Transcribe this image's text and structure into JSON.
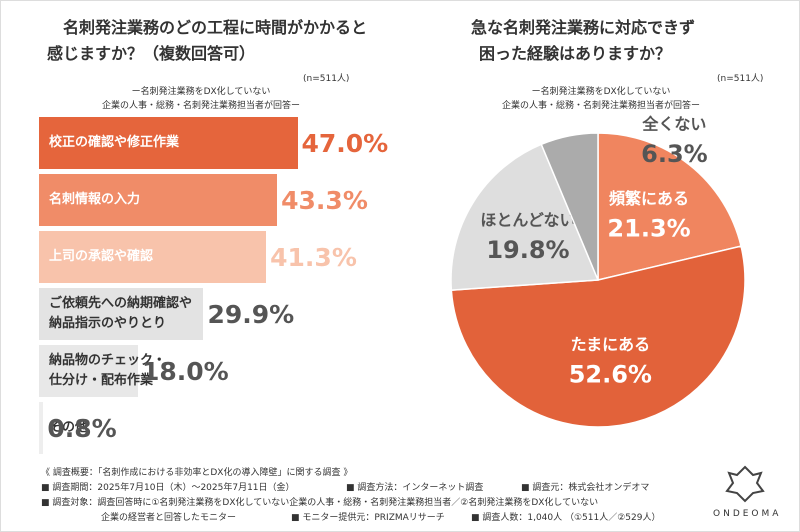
{
  "chart_data": [
    {
      "type": "bar",
      "title_lines": [
        "名刺発注業務のどの工程に時間がかかると",
        "感じますか？（複数回答可）"
      ],
      "note": "(n=511人)",
      "subtitle_lines": [
        "ー名刺発注業務をDX化していない",
        "企業の人事・総務・名刺発注業務担当者が回答ー"
      ],
      "categories": [
        "校正の確認や修正作業",
        "名刺情報の入力",
        "上司の承認や確認",
        "ご依頼先への納期確認や\n納品指示のやりとり",
        "納品物のチェック・\n仕分け・配布作業",
        "その他"
      ],
      "values": [
        47.0,
        43.3,
        41.3,
        29.9,
        18.0,
        0.8
      ],
      "value_labels": [
        "47.0%",
        "43.3%",
        "41.3%",
        "29.9%",
        "18.0%",
        "0.8%"
      ],
      "colors": [
        "#e5653c",
        "#f08c68",
        "#f8c3ab",
        "#e3e3e3",
        "#e8e8e8",
        "#eeeeee"
      ],
      "category_colors": [
        "#ffffff",
        "#ffffff",
        "#ffffff",
        "#333333",
        "#333333",
        "#333333"
      ],
      "value_label_colors": [
        "#e5653c",
        "#f08c68",
        "#f8c3ab",
        "#555555",
        "#555555",
        "#555555"
      ]
    },
    {
      "type": "pie",
      "title_lines": [
        "急な名刺発注業務に対応できず",
        "困った経験はありますか？"
      ],
      "note": "(n=511人)",
      "subtitle_lines": [
        "ー名刺発注業務をDX化していない",
        "企業の人事・総務・名刺発注業務担当者が回答ー"
      ],
      "categories": [
        "頻繁にある",
        "たまにある",
        "ほとんどない",
        "全くない"
      ],
      "values": [
        21.3,
        52.6,
        19.8,
        6.3
      ],
      "value_labels": [
        "21.3%",
        "52.6%",
        "19.8%",
        "6.3%"
      ],
      "colors": [
        "#f0855f",
        "#e2623a",
        "#dedede",
        "#ababab"
      ],
      "label_colors": [
        "#ffffff",
        "#ffffff",
        "#555555",
        "#555555"
      ]
    }
  ],
  "footer": {
    "heading": "《 調査概要：「名刺作成における非効率とDX化の導入障壁」に関する調査 》",
    "items": [
      "■ 調査期間：2025年7月10日（木）〜2025年7月11日（金）",
      "■ 調査方法：インターネット調査",
      "■ 調査元：株式会社オンデオマ",
      "■ 調査対象：調査回答時に①名刺発注業務をDX化していない企業の人事・総務・名刺発注業務担当者／②名刺発注業務をDX化していない",
      "企業の経営者と回答したモニター",
      "■ モニター提供元：PRIZMAリサーチ",
      "■ 調査人数：1,040人 （①511人／②529人）"
    ]
  },
  "logo": "ONDEOMA"
}
